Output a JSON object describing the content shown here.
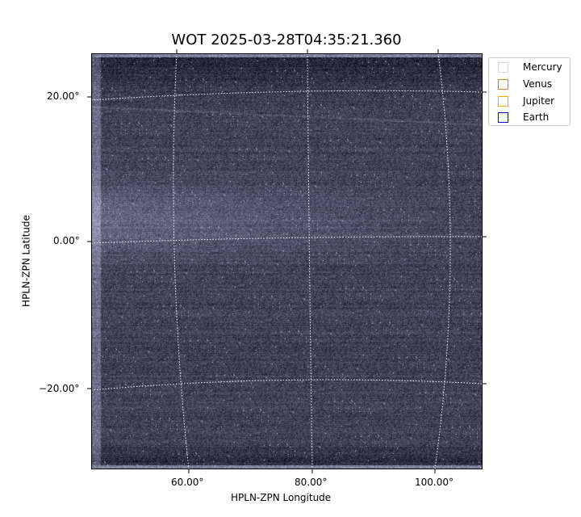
{
  "chart_data": {
    "type": "heatmap",
    "title": "WOT 2025-03-28T04:35:21.360",
    "xlabel": "HPLN-ZPN Longitude",
    "ylabel": "HPLN-ZPN Latitude",
    "xticks": [
      "60.00°",
      "80.00°",
      "100.00°"
    ],
    "yticks": [
      "20.00°",
      "0.00°",
      "−20.00°"
    ],
    "grid": true,
    "colormap": "bone",
    "legend_placement": "outside-top-right",
    "legend": [
      {
        "name": "Mercury",
        "color": "#d8d8d8"
      },
      {
        "name": "Venus",
        "color": "#cd853f"
      },
      {
        "name": "Jupiter",
        "color": "#ffa500"
      },
      {
        "name": "Earth",
        "color": "#0000ff"
      }
    ]
  }
}
